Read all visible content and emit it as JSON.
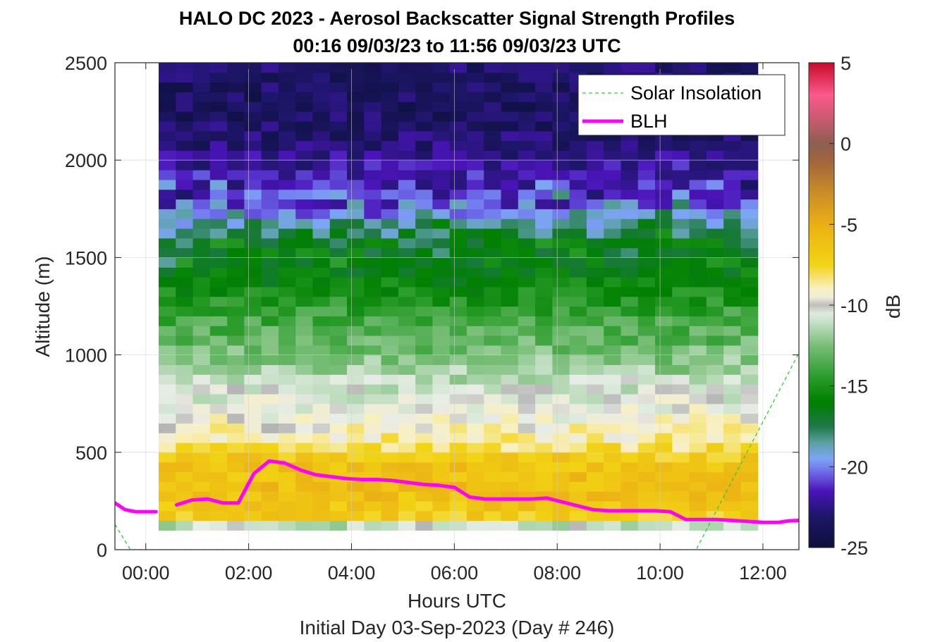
{
  "chart_data": {
    "type": "heatmap",
    "title": "HALO DC 2023 - Aerosol Backscatter Signal Strength Profiles",
    "subtitle": "00:16 09/03/23 to 11:56 09/03/23  UTC",
    "xlabel": "Hours UTC",
    "ylabel": "Altitude (m)",
    "footer": "Initial Day 03-Sep-2023 (Day # 246)",
    "xlim": [
      -0.6,
      12.7
    ],
    "ylim": [
      0,
      2500
    ],
    "x_ticks": [
      0,
      2,
      4,
      6,
      8,
      10,
      12
    ],
    "x_tick_labels": [
      "00:00",
      "02:00",
      "04:00",
      "06:00",
      "08:00",
      "10:00",
      "12:00"
    ],
    "y_ticks": [
      0,
      500,
      1000,
      1500,
      2000,
      2500
    ],
    "y_tick_labels": [
      "0",
      "500",
      "1000",
      "1500",
      "2000",
      "2500"
    ],
    "grid": true,
    "legend_position": "top-right",
    "legend": [
      {
        "label": "Solar Insolation",
        "style": "dashed",
        "color": "#33cc33"
      },
      {
        "label": "BLH",
        "style": "solid",
        "color": "#ff00ff"
      }
    ],
    "colorbar": {
      "label": "dB",
      "range": [
        -25,
        5
      ],
      "ticks": [
        5,
        0,
        -5,
        -10,
        -15,
        -20,
        -25
      ],
      "tick_labels": [
        "5",
        "0",
        "-5",
        "-10",
        "-15",
        "-20",
        "-25"
      ]
    },
    "heatmap": {
      "x_start": 0.25,
      "x_end": 11.9,
      "columns": 35,
      "y_start": 100,
      "y_end": 2500,
      "rows": 48,
      "dB_profile_by_altitude": [
        [
          125,
          -11
        ],
        [
          175,
          -7
        ],
        [
          300,
          -6
        ],
        [
          450,
          -6.5
        ],
        [
          550,
          -8.5
        ],
        [
          650,
          -9.5
        ],
        [
          800,
          -10.5
        ],
        [
          1000,
          -12.5
        ],
        [
          1200,
          -14
        ],
        [
          1400,
          -16
        ],
        [
          1600,
          -16.5
        ],
        [
          1700,
          -19
        ],
        [
          1850,
          -21
        ],
        [
          2100,
          -23
        ],
        [
          2300,
          -23.5
        ],
        [
          2500,
          -23
        ]
      ]
    },
    "series": [
      {
        "name": "BLH",
        "x": [
          -0.6,
          -0.4,
          -0.2,
          0.0,
          0.2,
          null,
          0.6,
          0.9,
          1.2,
          1.5,
          1.8,
          2.1,
          2.4,
          2.7,
          3.0,
          3.3,
          3.6,
          3.9,
          4.2,
          4.5,
          4.8,
          5.1,
          5.4,
          5.7,
          6.0,
          6.3,
          6.6,
          6.9,
          7.2,
          7.5,
          7.8,
          8.1,
          8.4,
          8.7,
          9.0,
          9.3,
          9.6,
          9.9,
          10.2,
          10.5,
          10.8,
          11.1,
          11.4,
          11.7,
          12.0,
          12.3,
          12.5,
          12.7
        ],
        "y": [
          240,
          205,
          195,
          195,
          195,
          null,
          230,
          255,
          260,
          240,
          240,
          390,
          455,
          445,
          410,
          385,
          375,
          365,
          360,
          360,
          355,
          345,
          335,
          330,
          320,
          270,
          260,
          260,
          260,
          260,
          265,
          245,
          225,
          205,
          200,
          200,
          200,
          200,
          195,
          155,
          155,
          155,
          150,
          145,
          140,
          140,
          148,
          150
        ]
      },
      {
        "name": "Solar Insolation",
        "x": [
          -0.6,
          -0.3,
          10.7,
          12.7
        ],
        "y": [
          130,
          0,
          0,
          1010
        ]
      }
    ]
  }
}
